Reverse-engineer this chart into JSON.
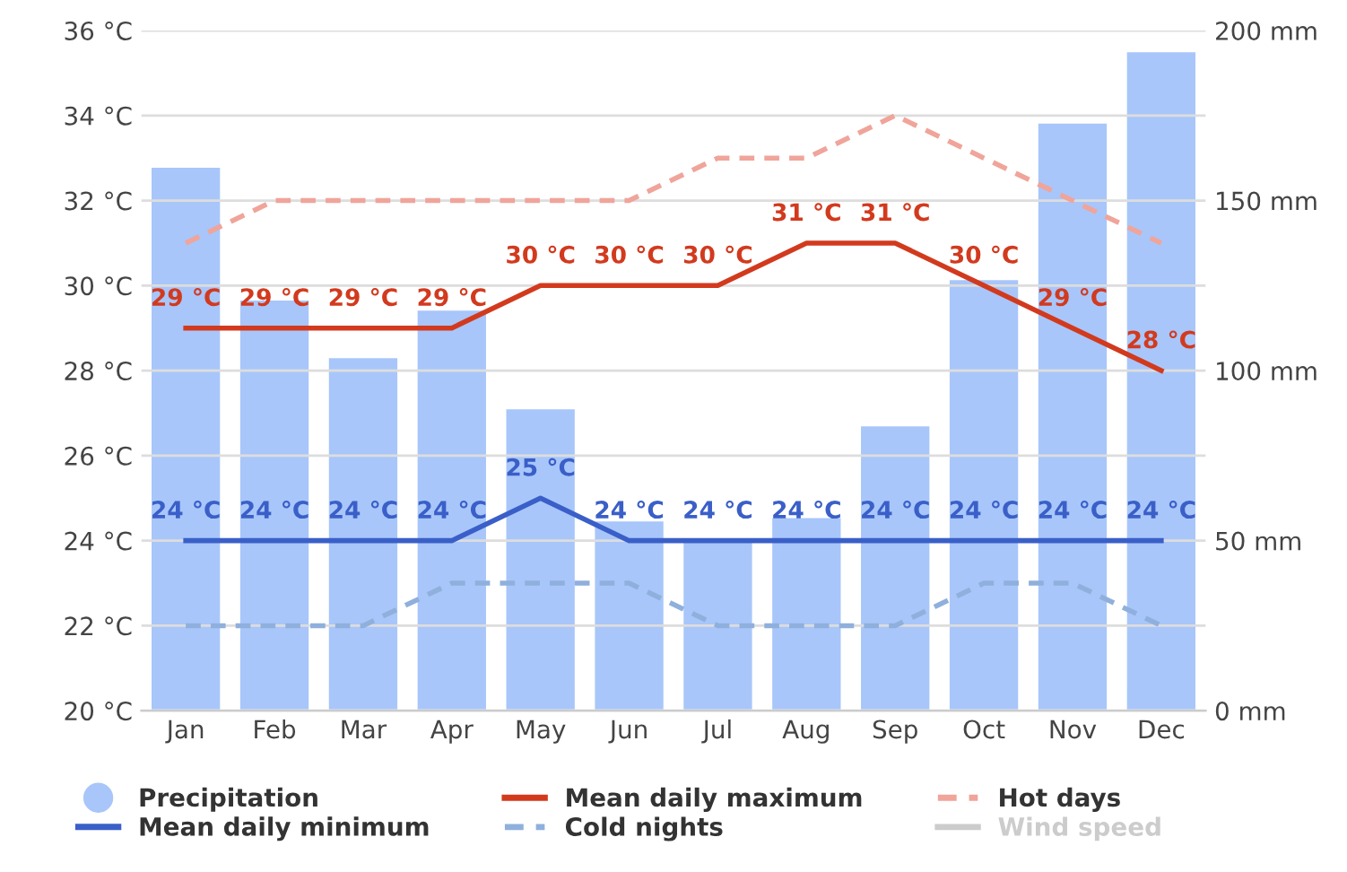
{
  "chart_data": {
    "type": "bar",
    "categories": [
      "Jan",
      "Feb",
      "Mar",
      "Apr",
      "May",
      "Jun",
      "Jul",
      "Aug",
      "Sep",
      "Oct",
      "Nov",
      "Dec"
    ],
    "series": [
      {
        "name": "Precipitation",
        "axis": "y2",
        "color": "#a8c6fa",
        "values": [
          160,
          121,
          104,
          118,
          89,
          56,
          51,
          57,
          84,
          127,
          173,
          194
        ]
      },
      {
        "name": "Mean daily maximum",
        "type": "line",
        "axis": "y",
        "color": "#d23a1e",
        "line_style": "solid",
        "values": [
          29,
          29,
          29,
          29,
          30,
          30,
          30,
          31,
          31,
          30,
          29,
          28
        ],
        "value_labels": [
          "29 °C",
          "29 °C",
          "29 °C",
          "29 °C",
          "30 °C",
          "30 °C",
          "30 °C",
          "31 °C",
          "31 °C",
          "30 °C",
          "29 °C",
          "28 °C"
        ]
      },
      {
        "name": "Hot days",
        "type": "line",
        "axis": "y",
        "color": "#f0a49a",
        "line_style": "dashed",
        "values": [
          31,
          32,
          32,
          32,
          32,
          32,
          33,
          33,
          34,
          33,
          32,
          31
        ]
      },
      {
        "name": "Mean daily minimum",
        "type": "line",
        "axis": "y",
        "color": "#3a5fc8",
        "line_style": "solid",
        "values": [
          24,
          24,
          24,
          24,
          25,
          24,
          24,
          24,
          24,
          24,
          24,
          24
        ],
        "value_labels": [
          "24 °C",
          "24 °C",
          "24 °C",
          "24 °C",
          "25 °C",
          "24 °C",
          "24 °C",
          "24 °C",
          "24 °C",
          "24 °C",
          "24 °C",
          "24 °C"
        ]
      },
      {
        "name": "Cold nights",
        "type": "line",
        "axis": "y",
        "color": "#8fb0dc",
        "line_style": "dashed",
        "values": [
          22,
          22,
          22,
          23,
          23,
          23,
          22,
          22,
          22,
          23,
          23,
          22
        ]
      },
      {
        "name": "Wind speed",
        "type": "line",
        "axis": "y",
        "color": "#cccccc",
        "line_style": "solid",
        "values": [
          null,
          null,
          null,
          null,
          null,
          null,
          null,
          null,
          null,
          null,
          null,
          null
        ]
      }
    ],
    "ylim": [
      20,
      36
    ],
    "yticks": [
      {
        "value": 20,
        "label": "20 °C"
      },
      {
        "value": 22,
        "label": "22 °C"
      },
      {
        "value": 24,
        "label": "24 °C"
      },
      {
        "value": 26,
        "label": "26 °C"
      },
      {
        "value": 28,
        "label": "28 °C"
      },
      {
        "value": 30,
        "label": "30 °C"
      },
      {
        "value": 32,
        "label": "32 °C"
      },
      {
        "value": 34,
        "label": "34 °C"
      },
      {
        "value": 36,
        "label": "36 °C"
      }
    ],
    "y2lim": [
      0,
      200
    ],
    "y2ticks": [
      {
        "value": 0,
        "label": "0 mm"
      },
      {
        "value": 50,
        "label": "50 mm"
      },
      {
        "value": 100,
        "label": "100 mm"
      },
      {
        "value": 150,
        "label": "150 mm"
      },
      {
        "value": 200,
        "label": "200 mm"
      }
    ],
    "grid": "y",
    "legend": "bottom"
  }
}
